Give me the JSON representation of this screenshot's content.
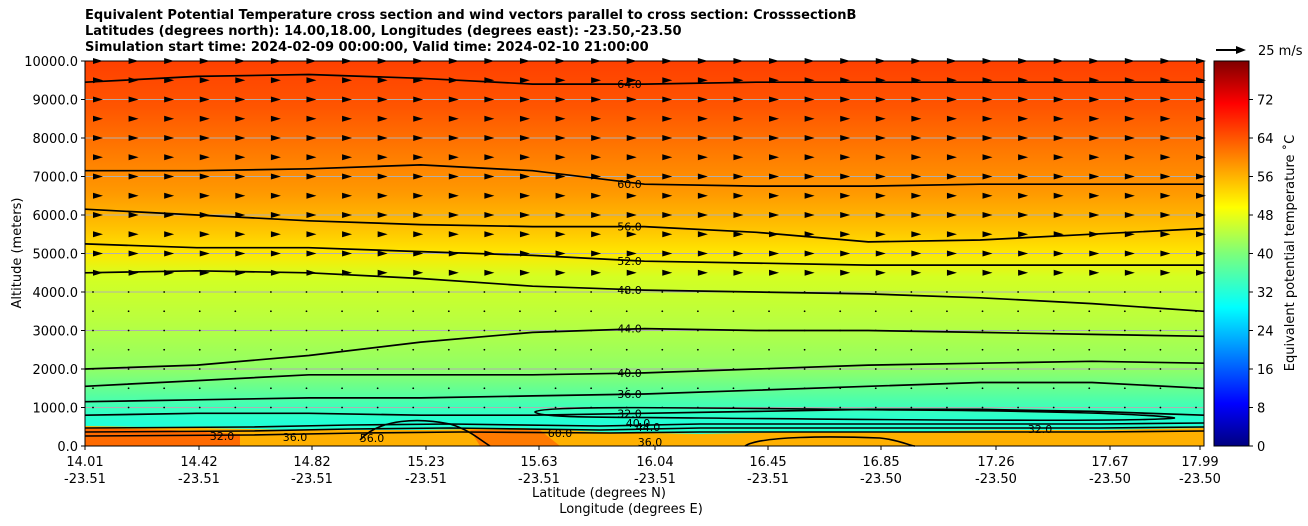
{
  "chart_data": {
    "type": "heatmap",
    "title_lines": [
      "Equivalent Potential Temperature cross section and wind vectors parallel to cross section: CrosssectionB",
      "Latitudes (degrees north): 14.00,18.00, Longitudes (degrees east): -23.50,-23.50",
      "Simulation start time: 2024-02-09 00:00:00, Valid time: 2024-02-10 21:00:00"
    ],
    "ylabel": "Altitude (meters)",
    "xlabel_lat": "Latitude (degrees N)",
    "xlabel_lon": "Longitude (degrees E)",
    "ylim": [
      0,
      10000
    ],
    "yticks": [
      "0.0",
      "1000.0",
      "2000.0",
      "3000.0",
      "4000.0",
      "5000.0",
      "6000.0",
      "7000.0",
      "8000.0",
      "9000.0",
      "10000.0"
    ],
    "xticks_lat": [
      "14.01",
      "14.42",
      "14.82",
      "15.23",
      "15.63",
      "16.04",
      "16.45",
      "16.85",
      "17.26",
      "17.67",
      "17.99"
    ],
    "xticks_lon": [
      "-23.51",
      "-23.51",
      "-23.51",
      "-23.51",
      "-23.51",
      "-23.51",
      "-23.51",
      "-23.50",
      "-23.50",
      "-23.50",
      "-23.50"
    ],
    "colorbar": {
      "label": "Equivalent potential temperature ˚C",
      "range": [
        0,
        80
      ],
      "ticks": [
        "0",
        "8",
        "16",
        "24",
        "32",
        "40",
        "48",
        "56",
        "64",
        "72"
      ]
    },
    "vector_key": "25 m/s",
    "contours": [
      {
        "level": 64,
        "label": "64.0",
        "alt": [
          9450,
          9600,
          9650,
          9550,
          9400,
          9400,
          9450,
          9450,
          9450,
          9450,
          9450
        ]
      },
      {
        "level": 60,
        "label": "60.0",
        "alt": [
          7150,
          7150,
          7200,
          7300,
          7150,
          6800,
          6750,
          6750,
          6800,
          6800,
          6800
        ]
      },
      {
        "level": 56,
        "label": "56.0",
        "alt": [
          6150,
          6000,
          5850,
          5750,
          5700,
          5700,
          5550,
          5300,
          5350,
          5500,
          5650
        ]
      },
      {
        "level": 52,
        "label": "52.0",
        "alt": [
          5250,
          5150,
          5150,
          5050,
          4950,
          4800,
          4750,
          4700,
          4700,
          4700,
          4700
        ]
      },
      {
        "level": 48,
        "label": "48.0",
        "alt": [
          4500,
          4550,
          4500,
          4350,
          4150,
          4050,
          4000,
          3950,
          3850,
          3700,
          3500
        ]
      },
      {
        "level": 44,
        "label": "44.0",
        "alt": [
          2000,
          2100,
          2350,
          2700,
          2950,
          3050,
          3000,
          3000,
          2950,
          2900,
          2850
        ]
      },
      {
        "level": 40,
        "label": "40.0",
        "alt": [
          1550,
          1700,
          1850,
          1850,
          1850,
          1900,
          2000,
          2100,
          2150,
          2200,
          2150
        ]
      },
      {
        "level": 36,
        "label": "36.0",
        "alt": [
          1150,
          1200,
          1250,
          1250,
          1300,
          1350,
          1450,
          1550,
          1650,
          1650,
          1500
        ]
      },
      {
        "level": 32,
        "label": "32.0",
        "alt": [
          800,
          850,
          850,
          800,
          800,
          850,
          900,
          950,
          950,
          900,
          800
        ]
      }
    ],
    "contour_label_extras": [
      "32.0",
      "36.0",
      "56.0",
      "60.0",
      "32.0",
      "36.0",
      "40.0",
      "44.0"
    ]
  }
}
